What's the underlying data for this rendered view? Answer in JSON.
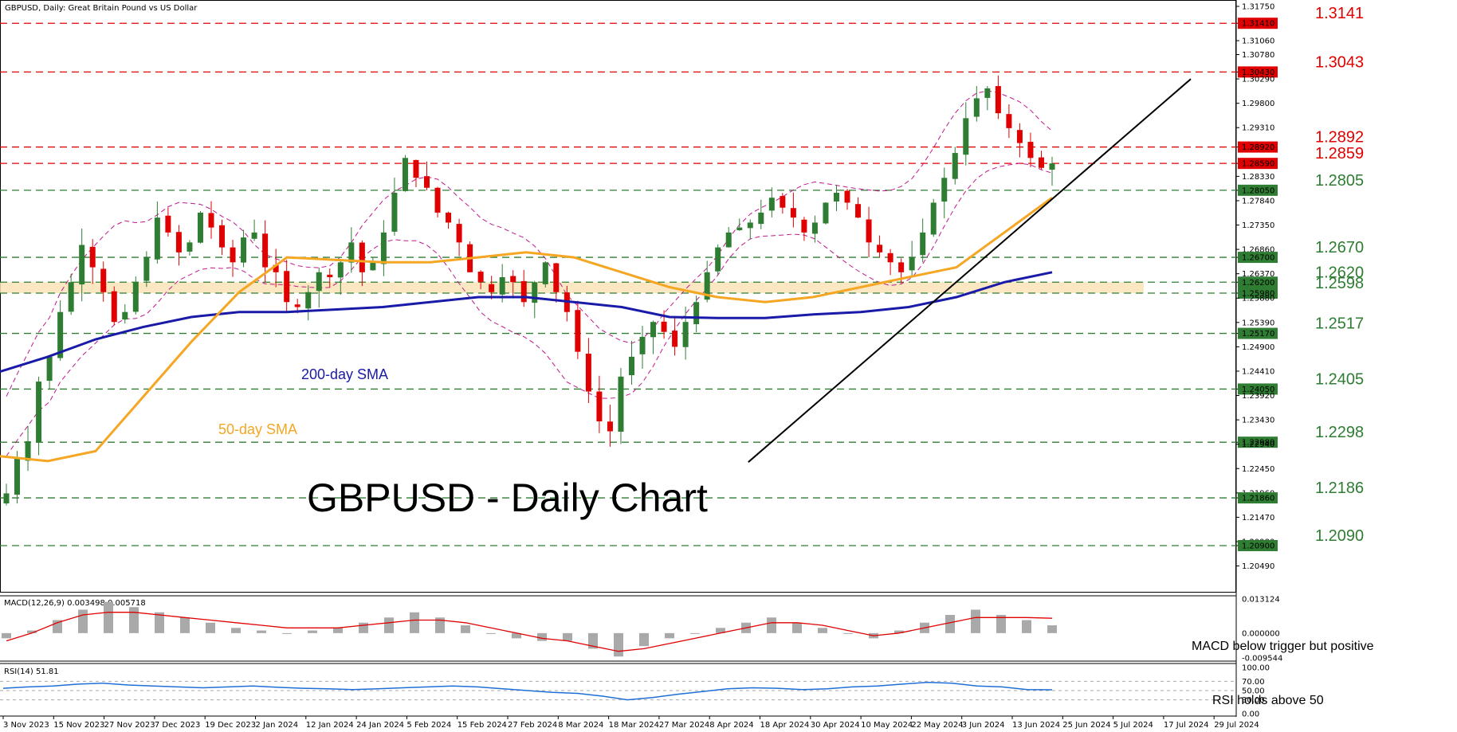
{
  "header": {
    "symbol_label": "GBPUSD, Daily:  Great Britain Pound vs US Dollar",
    "big_title": "GBPUSD - Daily Chart",
    "sma200_label": "200-day SMA",
    "sma50_label": "50-day SMA"
  },
  "colors": {
    "resistance": "#e00000",
    "support": "#2e7d32",
    "bull": "#2e7d32",
    "bear": "#e00000",
    "sma50": "#f5a623",
    "sma200": "#1a1aa8",
    "bands": "#c2188e",
    "zone": "#fbe3b8",
    "macd_hist": "#a9a9a9",
    "macd_signal": "#e00000",
    "rsi": "#1e6fd6"
  },
  "chart_data": [
    {
      "type": "candlestick",
      "title": "GBPUSD - Daily Chart",
      "ylim": [
        1.2005,
        1.3175
      ],
      "y_ticks": [
        "1.31750",
        "1.31410",
        "1.31060",
        "1.30780",
        "1.30430",
        "1.30290",
        "1.29800",
        "1.29310",
        "1.28920",
        "1.28590",
        "1.28330",
        "1.28050",
        "1.27840",
        "1.27350",
        "1.26860",
        "1.26700",
        "1.26370",
        "1.26200",
        "1.25980",
        "1.25880",
        "1.25390",
        "1.25170",
        "1.24900",
        "1.24410",
        "1.24050",
        "1.23920",
        "1.23430",
        "1.22980",
        "1.22940",
        "1.22450",
        "1.21960",
        "1.21860",
        "1.21470",
        "1.20980",
        "1.20900",
        "1.20490"
      ],
      "highlighted_ticks": [
        "1.31410",
        "1.30430",
        "1.28920",
        "1.28590",
        "1.28050",
        "1.26700",
        "1.26200",
        "1.25980",
        "1.25170",
        "1.24050",
        "1.22980",
        "1.21860",
        "1.20900"
      ],
      "x_ticks": [
        "3 Nov 2023",
        "15 Nov 2023",
        "27 Nov 2023",
        "7 Dec 2023",
        "19 Dec 2023",
        "2 Jan 2024",
        "12 Jan 2024",
        "24 Jan 2024",
        "5 Feb 2024",
        "15 Feb 2024",
        "27 Feb 2024",
        "8 Mar 2024",
        "18 Mar 2024",
        "27 Mar 2024",
        "8 Apr 2024",
        "18 Apr 2024",
        "30 Apr 2024",
        "10 May 2024",
        "22 May 2024",
        "3 Jun 2024",
        "13 Jun 2024",
        "25 Jun 2024",
        "5 Jul 2024",
        "17 Jul 2024",
        "29 Jul 2024"
      ],
      "resistance_levels": [
        {
          "label": "1.3141",
          "value": 1.3141
        },
        {
          "label": "1.3043",
          "value": 1.3043
        },
        {
          "label": "1.2892",
          "value": 1.2892
        },
        {
          "label": "1.2859",
          "value": 1.2859
        }
      ],
      "support_levels": [
        {
          "label": "1.2805",
          "value": 1.2805
        },
        {
          "label": "1.2670",
          "value": 1.267
        },
        {
          "label": "1.2620",
          "value": 1.262
        },
        {
          "label": "1.2598",
          "value": 1.2598
        },
        {
          "label": "1.2517",
          "value": 1.2517
        },
        {
          "label": "1.2405",
          "value": 1.2405
        },
        {
          "label": "1.2298",
          "value": 1.2298
        },
        {
          "label": "1.2186",
          "value": 1.2186
        },
        {
          "label": "1.2090",
          "value": 1.209
        }
      ],
      "support_zone": [
        1.2598,
        1.262
      ],
      "current_price": "1.28590",
      "close_path": [
        1.2195,
        1.2265,
        1.23,
        1.242,
        1.247,
        1.256,
        1.262,
        1.2695,
        1.265,
        1.26,
        1.254,
        1.256,
        1.262,
        1.267,
        1.275,
        1.272,
        1.268,
        1.27,
        1.276,
        1.273,
        1.269,
        1.266,
        1.271,
        1.272,
        1.265,
        1.264,
        1.258,
        1.257,
        1.26,
        1.264,
        1.263,
        1.266,
        1.27,
        1.264,
        1.266,
        1.272,
        1.28,
        1.287,
        1.283,
        1.281,
        1.276,
        1.274,
        1.27,
        1.264,
        1.262,
        1.26,
        1.263,
        1.262,
        1.258,
        1.262,
        1.266,
        1.26,
        1.256,
        1.248,
        1.24,
        1.234,
        1.232,
        1.243,
        1.247,
        1.251,
        1.254,
        1.252,
        1.249,
        1.254,
        1.258,
        1.264,
        1.269,
        1.272,
        1.273,
        1.274,
        1.276,
        1.279,
        1.277,
        1.275,
        1.272,
        1.274,
        1.278,
        1.28,
        1.278,
        1.275,
        1.27,
        1.268,
        1.266,
        1.264,
        1.267,
        1.272,
        1.278,
        1.283,
        1.288,
        1.295,
        1.299,
        1.301,
        1.296,
        1.293,
        1.29,
        1.287,
        1.285,
        1.2859
      ],
      "trendline": {
        "from": [
          "18 Apr 2024",
          1.2298
        ],
        "to": [
          "17 Jul 2024",
          1.3
        ]
      },
      "series": [
        {
          "name": "200-day SMA",
          "values": [
            1.244,
            1.247,
            1.2505,
            1.253,
            1.255,
            1.256,
            1.256,
            1.2565,
            1.257,
            1.258,
            1.259,
            1.259,
            1.258,
            1.257,
            1.255,
            1.2548,
            1.2548,
            1.2555,
            1.256,
            1.257,
            1.259,
            1.262,
            1.264
          ]
        },
        {
          "name": "50-day SMA",
          "values": [
            1.227,
            1.226,
            1.228,
            1.239,
            1.25,
            1.26,
            1.267,
            1.2665,
            1.266,
            1.266,
            1.267,
            1.268,
            1.267,
            1.264,
            1.261,
            1.259,
            1.258,
            1.259,
            1.261,
            1.263,
            1.265,
            1.272,
            1.279
          ]
        }
      ]
    },
    {
      "type": "bar",
      "indicator": "MACD(12,26,9) 0.003498 0.005718",
      "ylim": [
        -0.009544,
        0.013124
      ],
      "y_ticks": [
        "0.013124",
        "0.000000",
        "-0.009544"
      ],
      "note": "MACD below trigger but positive",
      "values": [
        -0.002,
        0.001,
        0.005,
        0.009,
        0.012,
        0.01,
        0.008,
        0.006,
        0.004,
        0.002,
        0.001,
        0.0,
        0.001,
        0.002,
        0.004,
        0.006,
        0.008,
        0.006,
        0.003,
        0.0,
        -0.002,
        -0.003,
        -0.003,
        -0.006,
        -0.009,
        -0.005,
        -0.002,
        0.0,
        0.002,
        0.004,
        0.006,
        0.004,
        0.002,
        0.0,
        -0.002,
        0.001,
        0.004,
        0.007,
        0.009,
        0.007,
        0.005,
        0.003
      ],
      "signal": [
        -0.003,
        0.0,
        0.004,
        0.007,
        0.008,
        0.008,
        0.007,
        0.006,
        0.005,
        0.004,
        0.003,
        0.002,
        0.002,
        0.002,
        0.003,
        0.004,
        0.005,
        0.005,
        0.004,
        0.002,
        0.0,
        -0.002,
        -0.003,
        -0.005,
        -0.007,
        -0.006,
        -0.004,
        -0.002,
        0.0,
        0.002,
        0.004,
        0.004,
        0.003,
        0.001,
        -0.001,
        0.0,
        0.002,
        0.004,
        0.006,
        0.006,
        0.006,
        0.0057
      ]
    },
    {
      "type": "line",
      "indicator": "RSI(14) 51.81",
      "ylim": [
        0,
        100
      ],
      "y_ticks": [
        "100.00",
        "70.00",
        "50.00",
        "30.00",
        "0.00"
      ],
      "note": "RSI holds above 50",
      "values": [
        55,
        58,
        60,
        64,
        66,
        62,
        60,
        58,
        56,
        58,
        60,
        57,
        55,
        54,
        52,
        54,
        56,
        58,
        60,
        58,
        54,
        50,
        46,
        44,
        38,
        30,
        35,
        42,
        48,
        54,
        56,
        55,
        52,
        54,
        58,
        60,
        64,
        68,
        66,
        60,
        58,
        52,
        51.81
      ]
    }
  ]
}
